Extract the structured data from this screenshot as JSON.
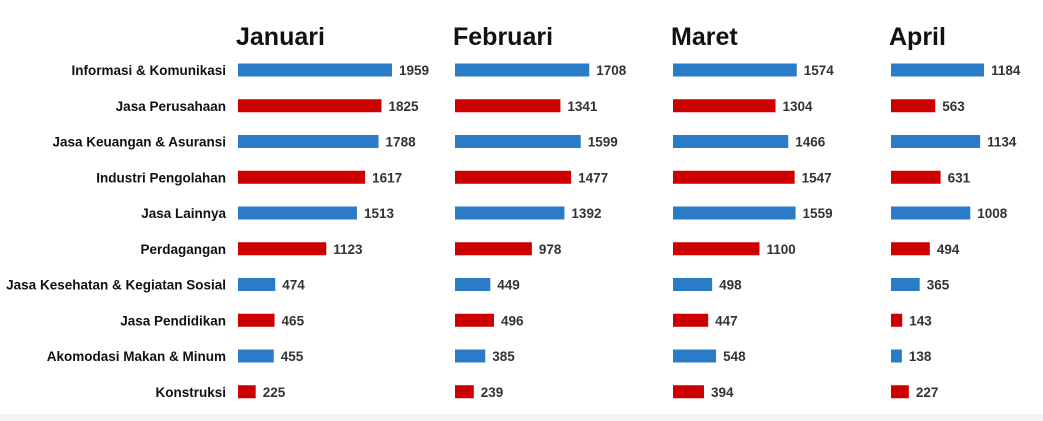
{
  "chart_data": {
    "type": "bar",
    "orientation": "horizontal",
    "layout": "small-multiples",
    "categories": [
      "Informasi & Komunikasi",
      "Jasa Perusahaan",
      "Jasa Keuangan & Asuransi",
      "Industri Pengolahan",
      "Jasa Lainnya",
      "Perdagangan",
      "Jasa Kesehatan & Kegiatan Sosial",
      "Jasa Pendidikan",
      "Akomodasi Makan & Minum",
      "Konstruksi"
    ],
    "bar_colors": [
      "#2a7bc8",
      "#cc0000",
      "#2a7bc8",
      "#cc0000",
      "#2a7bc8",
      "#cc0000",
      "#2a7bc8",
      "#cc0000",
      "#2a7bc8",
      "#cc0000"
    ],
    "series": [
      {
        "name": "Januari",
        "values": [
          1959,
          1825,
          1788,
          1617,
          1513,
          1123,
          474,
          465,
          455,
          225
        ]
      },
      {
        "name": "Februari",
        "values": [
          1708,
          1341,
          1599,
          1477,
          1392,
          978,
          449,
          496,
          385,
          239
        ]
      },
      {
        "name": "Maret",
        "values": [
          1574,
          1304,
          1466,
          1547,
          1559,
          1100,
          498,
          447,
          548,
          394
        ]
      },
      {
        "name": "April",
        "values": [
          1184,
          563,
          1134,
          631,
          1008,
          494,
          365,
          143,
          138,
          227
        ]
      }
    ],
    "xlim": [
      0,
      1959
    ],
    "grid": false,
    "legend": "none",
    "data_labels": true
  }
}
